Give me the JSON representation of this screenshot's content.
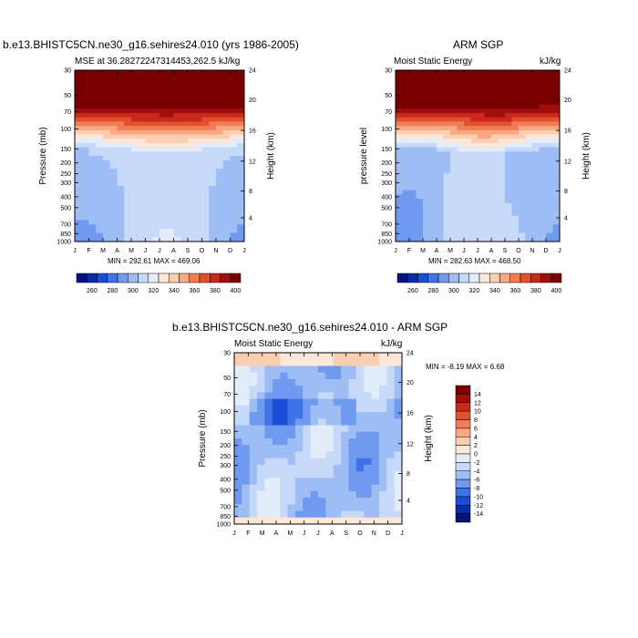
{
  "chart_data": [
    {
      "type": "heatmap",
      "title": "b.e13.BHISTC5CN.ne30_g16.sehires24.010 (yrs 1986-2005)",
      "subtitle_left": "MSE at 36.28272247314453,262.5",
      "units": "kJ/kg",
      "ylabel": "Pressure (mb)",
      "y2label": "Height (km)",
      "min_max": "MIN = 292.61  MAX = 469.06",
      "x_ticks": [
        "J",
        "F",
        "M",
        "A",
        "M",
        "J",
        "J",
        "A",
        "S",
        "O",
        "N",
        "D",
        "J"
      ],
      "pressure_ticks": [
        "30",
        "50",
        "70",
        "100",
        "150",
        "200",
        "250",
        "300",
        "400",
        "500",
        "700",
        "850",
        "1000"
      ],
      "height_ticks": [
        "24",
        "20",
        "16",
        "12",
        "8",
        "4"
      ],
      "colorbar_labels": [
        "260",
        "280",
        "300",
        "320",
        "340",
        "360",
        "380",
        "400"
      ]
    },
    {
      "type": "heatmap",
      "title": "ARM SGP",
      "subtitle_left": "Moist Static Energy",
      "units": "kJ/kg",
      "ylabel": "pressure level",
      "y2label": "Height (km)",
      "min_max": "MIN = 282.63  MAX = 468.50",
      "x_ticks": [
        "J",
        "F",
        "M",
        "A",
        "M",
        "J",
        "J",
        "A",
        "S",
        "O",
        "N",
        "D",
        "J"
      ],
      "pressure_ticks": [
        "30",
        "50",
        "70",
        "100",
        "150",
        "200",
        "250",
        "300",
        "400",
        "500",
        "700",
        "850",
        "1000"
      ],
      "height_ticks": [
        "24",
        "20",
        "16",
        "12",
        "8",
        "4"
      ],
      "colorbar_labels": [
        "260",
        "280",
        "300",
        "320",
        "340",
        "360",
        "380",
        "400"
      ]
    },
    {
      "type": "heatmap",
      "title": "b.e13.BHISTC5CN.ne30_g16.sehires24.010 - ARM SGP",
      "subtitle_left": "Moist Static Energy",
      "units": "kJ/kg",
      "ylabel": "Pressure (mb)",
      "y2label": "Height (km)",
      "min_max": "MIN =  -8.19  MAX =   6.68",
      "x_ticks": [
        "J",
        "F",
        "M",
        "A",
        "M",
        "J",
        "J",
        "A",
        "S",
        "O",
        "N",
        "D",
        "J"
      ],
      "pressure_ticks": [
        "30",
        "50",
        "70",
        "100",
        "150",
        "200",
        "250",
        "300",
        "400",
        "500",
        "700",
        "850",
        "1000"
      ],
      "height_ticks": [
        "24",
        "20",
        "16",
        "12",
        "8",
        "4"
      ],
      "colorbar_labels": [
        "14",
        "12",
        "10",
        "8",
        "6",
        "4",
        "2",
        "0",
        "-2",
        "-4",
        "-6",
        "-8",
        "-10",
        "-12",
        "-14"
      ]
    }
  ],
  "colors": {
    "abs_scale": [
      "#08127a",
      "#0a2ca8",
      "#1a4ed6",
      "#3f72e6",
      "#6f9af0",
      "#9ebdf5",
      "#c7d9f8",
      "#e3ecf9",
      "#fde7d9",
      "#fbcdb1",
      "#f7a883",
      "#f17d55",
      "#e2512f",
      "#c8291a",
      "#a0100b",
      "#7a0000"
    ],
    "diff_scale": [
      "#7a0000",
      "#a0100b",
      "#c8291a",
      "#e2512f",
      "#f17d55",
      "#f7a883",
      "#fbcdb1",
      "#fde7d9",
      "#e3ecf9",
      "#c7d9f8",
      "#9ebdf5",
      "#6f9af0",
      "#3f72e6",
      "#1a4ed6",
      "#0a2ca8",
      "#08127a"
    ]
  }
}
